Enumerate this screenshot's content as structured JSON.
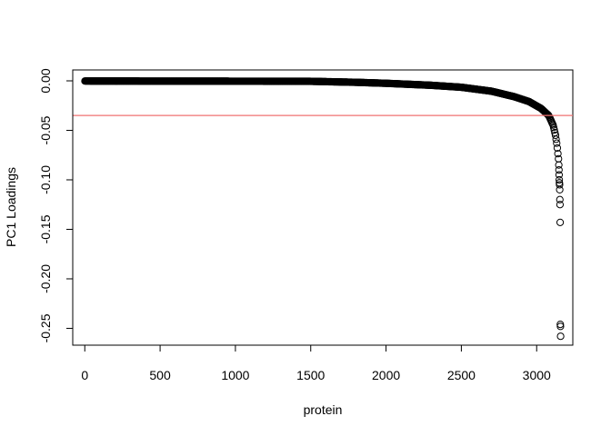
{
  "chart_data": {
    "type": "scatter",
    "xlabel": "protein",
    "ylabel": "PC1 Loadings",
    "xlim": [
      -80,
      3240
    ],
    "ylim": [
      -0.267,
      0.011
    ],
    "x_ticks": [
      0,
      500,
      1000,
      1500,
      2000,
      2500,
      3000
    ],
    "y_ticks": [
      0.0,
      -0.05,
      -0.1,
      -0.15,
      -0.2,
      -0.25
    ],
    "y_tick_labels": [
      "0.00",
      "-0.05",
      "-0.10",
      "-0.15",
      "-0.20",
      "-0.25"
    ],
    "marker": "open-circle",
    "point_color": "#000000",
    "n_points": 3160,
    "curve_anchors": [
      [
        1,
        -0.0002
      ],
      [
        1500,
        -0.0005
      ],
      [
        1800,
        -0.0015
      ],
      [
        2000,
        -0.0025
      ],
      [
        2300,
        -0.0045
      ],
      [
        2500,
        -0.0065
      ],
      [
        2700,
        -0.0105
      ],
      [
        2850,
        -0.016
      ],
      [
        2950,
        -0.021
      ],
      [
        3030,
        -0.028
      ],
      [
        3080,
        -0.035
      ],
      [
        3110,
        -0.045
      ],
      [
        3125,
        -0.055
      ],
      [
        3135,
        -0.065
      ],
      [
        3142,
        -0.075
      ],
      [
        3146,
        -0.08
      ]
    ],
    "outliers": [
      [
        3147,
        -0.085
      ],
      [
        3148,
        -0.09
      ],
      [
        3149,
        -0.095
      ],
      [
        3150,
        -0.1
      ],
      [
        3151,
        -0.103
      ],
      [
        3152,
        -0.105
      ],
      [
        3153,
        -0.11
      ],
      [
        3154,
        -0.12
      ],
      [
        3155,
        -0.125
      ],
      [
        3156,
        -0.143
      ],
      [
        3157,
        -0.246
      ],
      [
        3158,
        -0.248
      ],
      [
        3159,
        -0.258
      ]
    ],
    "reference_line": {
      "y": -0.035,
      "color": "#f07070",
      "orientation": "horizontal"
    }
  }
}
